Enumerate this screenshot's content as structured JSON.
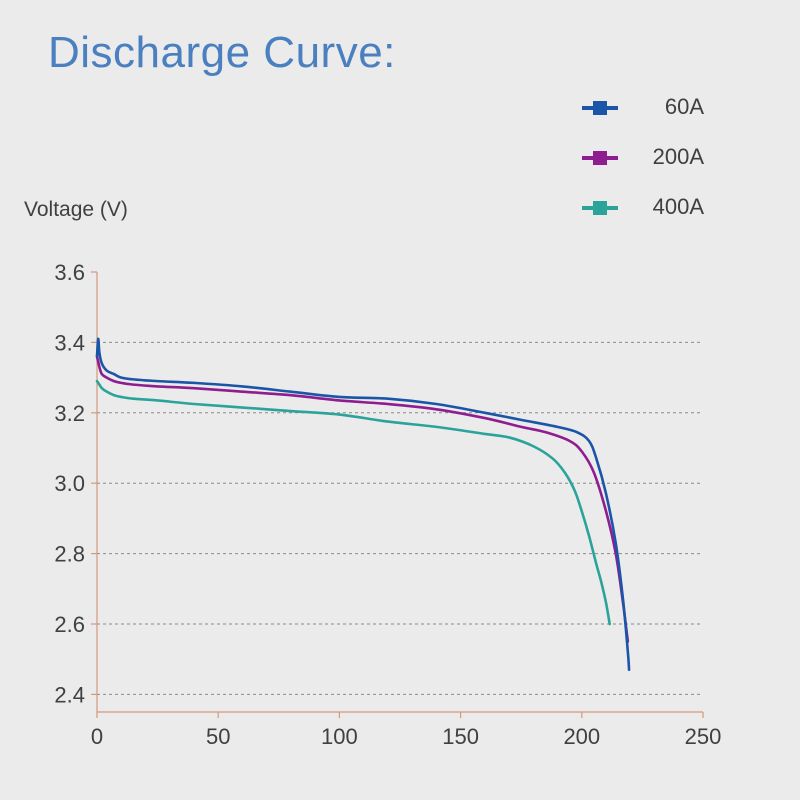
{
  "chart_data": {
    "type": "line",
    "title": "Discharge Curve:",
    "ylabel": "Voltage (V)",
    "xlabel": "",
    "xlim": [
      0,
      250
    ],
    "ylim": [
      2.35,
      3.6
    ],
    "xticks": [
      "0",
      "50",
      "100",
      "150",
      "200",
      "250"
    ],
    "yticks": [
      "2.4",
      "2.6",
      "2.8",
      "3.0",
      "3.2",
      "3.4",
      "3.6"
    ],
    "grid": "horizontal dashed",
    "legend_position": "top-right",
    "series": [
      {
        "name": "60A",
        "color": "#1a55a8",
        "x": [
          0,
          0.5,
          1,
          2,
          4,
          7,
          10,
          15,
          25,
          40,
          60,
          80,
          100,
          120,
          140,
          160,
          175,
          190,
          198,
          203,
          206,
          210,
          214,
          217,
          219,
          219.5
        ],
        "y": [
          3.36,
          3.41,
          3.37,
          3.34,
          3.32,
          3.31,
          3.3,
          3.295,
          3.29,
          3.285,
          3.275,
          3.26,
          3.245,
          3.24,
          3.225,
          3.2,
          3.18,
          3.16,
          3.145,
          3.12,
          3.07,
          2.97,
          2.83,
          2.67,
          2.52,
          2.47
        ]
      },
      {
        "name": "200A",
        "color": "#8e1d8f",
        "x": [
          0,
          1,
          2,
          4,
          7,
          10,
          15,
          25,
          40,
          60,
          80,
          100,
          120,
          140,
          160,
          175,
          185,
          195,
          200,
          205,
          210,
          214,
          217,
          219
        ],
        "y": [
          3.36,
          3.33,
          3.31,
          3.3,
          3.29,
          3.285,
          3.28,
          3.275,
          3.27,
          3.26,
          3.25,
          3.235,
          3.225,
          3.21,
          3.185,
          3.16,
          3.145,
          3.12,
          3.09,
          3.03,
          2.92,
          2.8,
          2.66,
          2.55
        ]
      },
      {
        "name": "400A",
        "color": "#2aa39a",
        "x": [
          0,
          1,
          2,
          4,
          7,
          10,
          15,
          25,
          40,
          60,
          80,
          100,
          120,
          140,
          160,
          170,
          180,
          188,
          193,
          197,
          200,
          203,
          206,
          208,
          210,
          211.5
        ],
        "y": [
          3.29,
          3.28,
          3.27,
          3.26,
          3.25,
          3.245,
          3.24,
          3.235,
          3.225,
          3.215,
          3.205,
          3.195,
          3.175,
          3.16,
          3.14,
          3.13,
          3.105,
          3.07,
          3.03,
          2.98,
          2.92,
          2.85,
          2.77,
          2.72,
          2.66,
          2.6
        ]
      }
    ]
  }
}
